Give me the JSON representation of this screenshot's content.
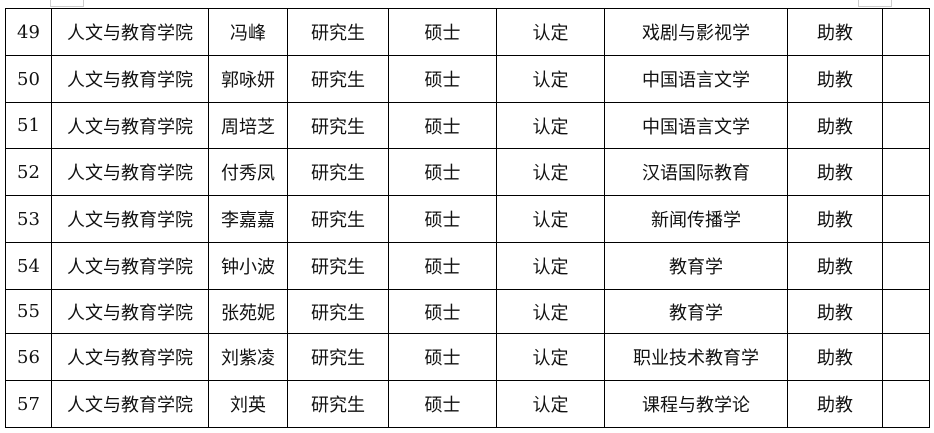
{
  "table": {
    "rows": [
      [
        "49",
        "人文与教育学院",
        "冯峰",
        "研究生",
        "硕士",
        "认定",
        "戏剧与影视学",
        "助教",
        ""
      ],
      [
        "50",
        "人文与教育学院",
        "郭咏妍",
        "研究生",
        "硕士",
        "认定",
        "中国语言文学",
        "助教",
        ""
      ],
      [
        "51",
        "人文与教育学院",
        "周培芝",
        "研究生",
        "硕士",
        "认定",
        "中国语言文学",
        "助教",
        ""
      ],
      [
        "52",
        "人文与教育学院",
        "付秀凤",
        "研究生",
        "硕士",
        "认定",
        "汉语国际教育",
        "助教",
        ""
      ],
      [
        "53",
        "人文与教育学院",
        "李嘉嘉",
        "研究生",
        "硕士",
        "认定",
        "新闻传播学",
        "助教",
        ""
      ],
      [
        "54",
        "人文与教育学院",
        "钟小波",
        "研究生",
        "硕士",
        "认定",
        "教育学",
        "助教",
        ""
      ],
      [
        "55",
        "人文与教育学院",
        "张苑妮",
        "研究生",
        "硕士",
        "认定",
        "教育学",
        "助教",
        ""
      ],
      [
        "56",
        "人文与教育学院",
        "刘紫凌",
        "研究生",
        "硕士",
        "认定",
        "职业技术教育学",
        "助教",
        ""
      ],
      [
        "57",
        "人文与教育学院",
        "刘英",
        "研究生",
        "硕士",
        "认定",
        "课程与教学论",
        "助教",
        ""
      ]
    ]
  }
}
